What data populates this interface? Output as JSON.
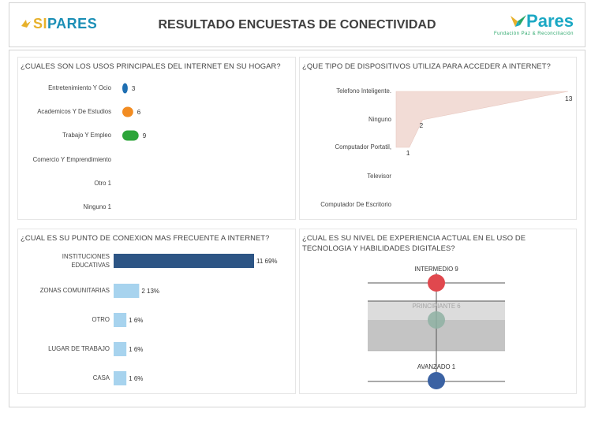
{
  "header": {
    "left_logo_si": "SI",
    "left_logo_pares": "PARES",
    "title": "RESULTADO ENCUESTAS DE CONECTIVIDAD",
    "right_logo_name": "Pares",
    "right_logo_sub": "Fundación Paz & Reconciliación"
  },
  "colors": {
    "blue": "#1f6fb2",
    "orange": "#f28c22",
    "green": "#2da53a",
    "navy": "#2d5585",
    "lightblue": "#a7d3ee",
    "red": "#e0484e",
    "sage": "#8fb2a3",
    "darkblue": "#3b62a3",
    "area": "#f2dcd6"
  },
  "chart_data": [
    {
      "type": "scatter",
      "title": "¿CUALES SON LOS USOS PRINCIPALES DEL INTERNET EN SU HOGAR?",
      "categories": [
        "Entretenimiento Y Ocio",
        "Academicos Y De Estudios",
        "Trabajo Y Empleo",
        "Comercio Y Emprendimiento",
        "Otro 1",
        "Ninguno 1"
      ],
      "values": [
        3,
        6,
        9,
        null,
        null,
        null
      ],
      "value_labels": [
        "3",
        "6",
        "9",
        "",
        "",
        ""
      ],
      "marker_colors": [
        "#1f6fb2",
        "#f28c22",
        "#2da53a"
      ]
    },
    {
      "type": "area",
      "title": "¿QUE TIPO DE DISPOSITIVOS UTILIZA PARA ACCEDER A INTERNET?",
      "categories": [
        "Telefono Inteligente.",
        "Ninguno",
        "Computador Portatil,",
        "Televisor",
        "Computador De Escritorio"
      ],
      "values": [
        13,
        2,
        1,
        null,
        null
      ],
      "value_labels": [
        "13",
        "2",
        "1",
        "",
        ""
      ]
    },
    {
      "type": "bar",
      "title": "¿CUAL ES SU PUNTO DE CONEXION MAS FRECUENTE A INTERNET?",
      "categories": [
        "INSTITUCIONES EDUCATIVAS",
        "ZONAS COMUNITARIAS",
        "OTRO",
        "LUGAR DE TRABAJO",
        "CASA"
      ],
      "values": [
        11,
        2,
        1,
        1,
        1
      ],
      "value_labels": [
        "11 69%",
        "2 13%",
        "1 6%",
        "1 6%",
        "1 6%"
      ]
    },
    {
      "type": "scatter",
      "title": "¿CUAL ES SU NIVEL DE EXPERIENCIA ACTUAL EN EL USO DE TECNOLOGIA Y HABILIDADES DIGITALES?",
      "categories": [
        "INTERMEDIO",
        "PRINCIPIANTE",
        "AVANZADO"
      ],
      "values": [
        9,
        6,
        1
      ],
      "value_labels": [
        "INTERMEDIO 9",
        "PRINCIPIANTE 6",
        "AVANZADO 1"
      ],
      "marker_colors": [
        "#e0484e",
        "#8fb2a3",
        "#3b62a3"
      ]
    }
  ]
}
